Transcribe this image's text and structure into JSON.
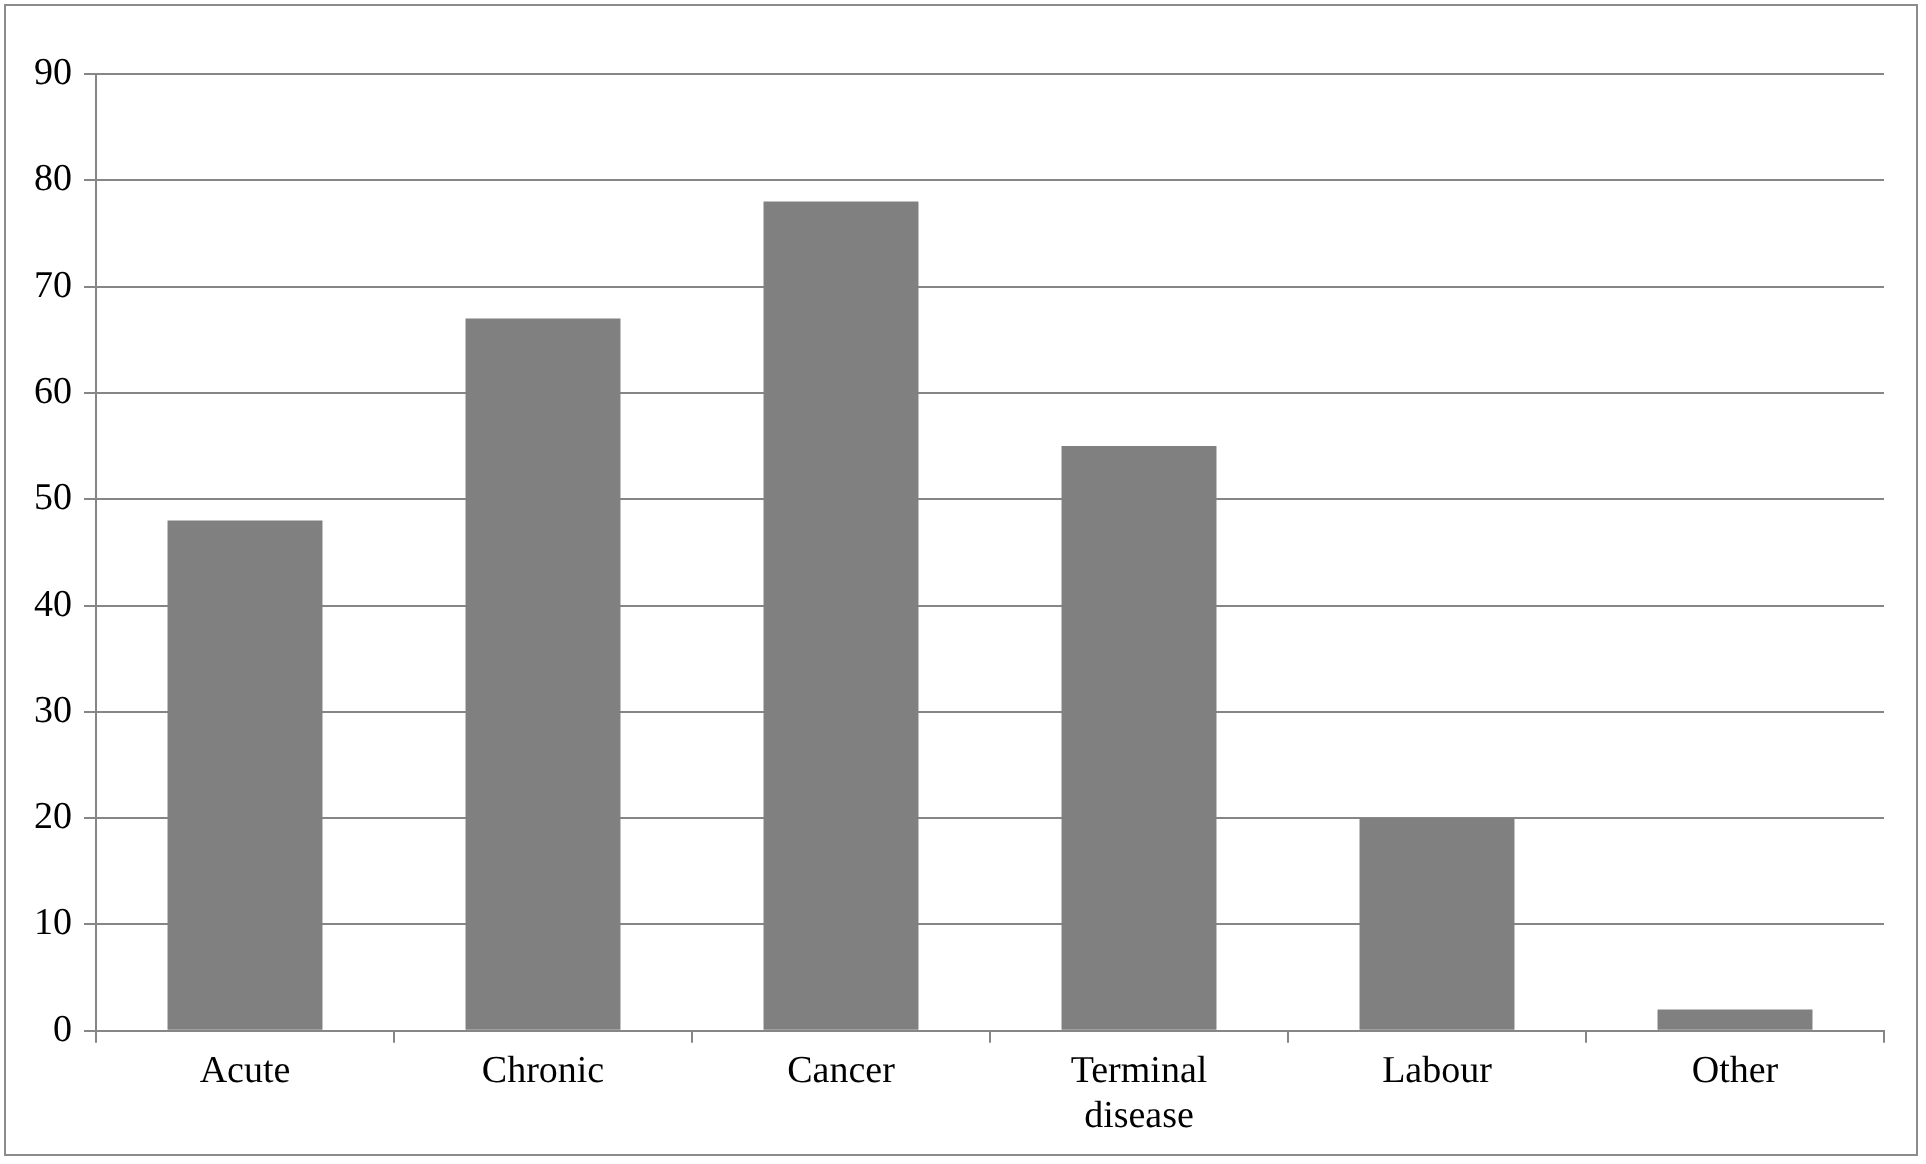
{
  "chart_data": {
    "type": "bar",
    "categories": [
      "Acute",
      "Chronic",
      "Cancer",
      "Terminal disease",
      "Labour",
      "Other"
    ],
    "values": [
      48,
      67,
      78,
      55,
      20,
      2
    ],
    "color": "#808080",
    "ylim": [
      0,
      90
    ],
    "yticks": [
      0,
      10,
      20,
      30,
      40,
      50,
      60,
      70,
      80,
      90
    ],
    "grid": "y",
    "legend": false
  }
}
